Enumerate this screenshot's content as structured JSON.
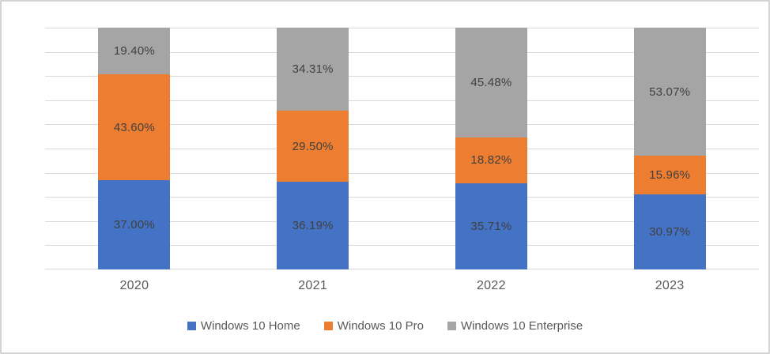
{
  "chart_data": {
    "type": "bar",
    "subtype": "stacked-100-percent-column",
    "title": "",
    "xlabel": "",
    "ylabel": "",
    "ylim": [
      0,
      100
    ],
    "grid": true,
    "grid_step": 10,
    "legend_position": "bottom",
    "categories": [
      "2020",
      "2021",
      "2022",
      "2023"
    ],
    "series": [
      {
        "name": "Windows 10 Home",
        "color": "#4472c4",
        "values": [
          37.0,
          36.19,
          35.71,
          30.97
        ],
        "labels": [
          "37.00%",
          "36.19%",
          "35.71%",
          "30.97%"
        ]
      },
      {
        "name": "Windows 10 Pro",
        "color": "#ed7d31",
        "values": [
          43.6,
          29.5,
          18.82,
          15.96
        ],
        "labels": [
          "43.60%",
          "29.50%",
          "18.82%",
          "15.96%"
        ]
      },
      {
        "name": "Windows 10 Enterprise",
        "color": "#a5a5a5",
        "values": [
          19.4,
          34.31,
          45.48,
          53.07
        ],
        "labels": [
          "19.40%",
          "34.31%",
          "45.48%",
          "53.07%"
        ]
      }
    ]
  },
  "colors": {
    "gridline": "#d9d9d9",
    "data_label_text": "#404040",
    "axis_text": "#595959",
    "legend_text": "#595959",
    "frame_border": "#d4d4d4",
    "background": "#ffffff"
  }
}
